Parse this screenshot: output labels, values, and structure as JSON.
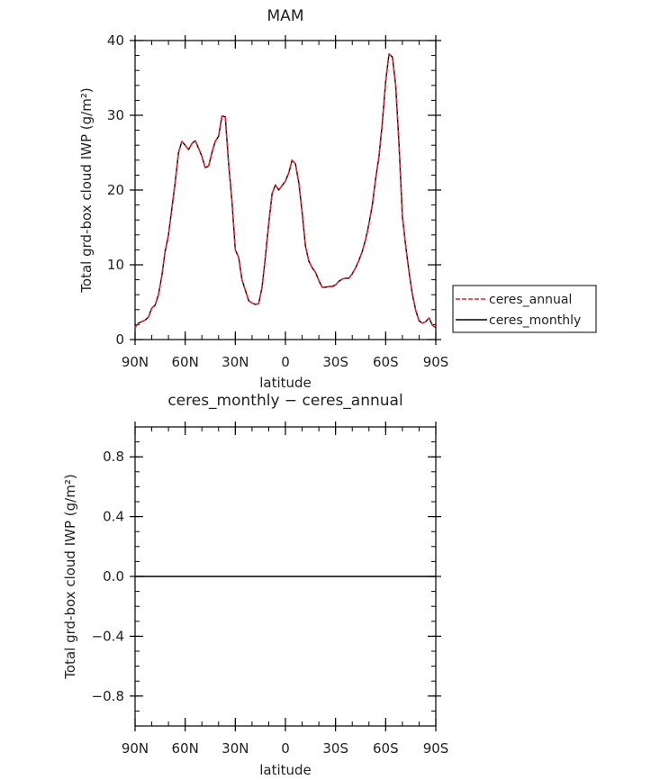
{
  "chart_data": [
    {
      "type": "line",
      "title": "MAM",
      "xlabel": "latitude",
      "ylabel": "Total grd-box cloud IWP (g/m²)",
      "xlim": [
        90,
        -90
      ],
      "ylim": [
        0,
        40
      ],
      "xticks": [
        {
          "value": 90,
          "label": "90N"
        },
        {
          "value": 60,
          "label": "60N"
        },
        {
          "value": 30,
          "label": "30N"
        },
        {
          "value": 0,
          "label": "0"
        },
        {
          "value": -30,
          "label": "30S"
        },
        {
          "value": -60,
          "label": "60S"
        },
        {
          "value": -90,
          "label": "90S"
        }
      ],
      "yticks": [
        {
          "value": 0,
          "label": "0"
        },
        {
          "value": 10,
          "label": "10"
        },
        {
          "value": 20,
          "label": "20"
        },
        {
          "value": 30,
          "label": "30"
        },
        {
          "value": 40,
          "label": "40"
        }
      ],
      "legend": {
        "placement": "right",
        "entries": [
          {
            "label": "ceres_annual",
            "color": "#e8242a",
            "dash": "dashed"
          },
          {
            "label": "ceres_monthly",
            "color": "#000000",
            "dash": "solid"
          }
        ]
      },
      "x": [
        90,
        88,
        86,
        84,
        82,
        80,
        78,
        76,
        74,
        72,
        70,
        68,
        66,
        64,
        62,
        60,
        58,
        56,
        54,
        52,
        50,
        48,
        46,
        44,
        42,
        40,
        38,
        36,
        34,
        32,
        30,
        28,
        26,
        24,
        22,
        20,
        18,
        16,
        14,
        12,
        10,
        8,
        6,
        4,
        2,
        0,
        -2,
        -4,
        -6,
        -8,
        -10,
        -12,
        -14,
        -16,
        -18,
        -20,
        -22,
        -24,
        -26,
        -28,
        -30,
        -32,
        -34,
        -36,
        -38,
        -40,
        -42,
        -44,
        -46,
        -48,
        -50,
        -52,
        -54,
        -56,
        -58,
        -60,
        -62,
        -64,
        -66,
        -68,
        -70,
        -72,
        -74,
        -76,
        -78,
        -80,
        -82,
        -84,
        -86,
        -88,
        -90
      ],
      "series": [
        {
          "name": "ceres_annual",
          "color": "#e8242a",
          "dash": "dashed",
          "values": [
            1.6,
            2.2,
            2.4,
            2.6,
            3.0,
            4.2,
            4.6,
            6.0,
            8.5,
            11.8,
            14.0,
            17.5,
            21.0,
            25.0,
            26.5,
            26.0,
            25.4,
            26.2,
            26.6,
            25.6,
            24.5,
            23.0,
            23.2,
            25.0,
            26.5,
            27.2,
            29.9,
            29.8,
            23.5,
            18.5,
            12.0,
            11.0,
            8.0,
            6.6,
            5.2,
            4.9,
            4.7,
            4.8,
            7.0,
            11.0,
            15.5,
            19.5,
            20.7,
            20.0,
            20.6,
            21.2,
            22.3,
            24.0,
            23.5,
            21.0,
            17.0,
            12.5,
            10.5,
            9.6,
            9.0,
            7.9,
            7.0,
            7.0,
            7.1,
            7.1,
            7.3,
            7.8,
            8.1,
            8.2,
            8.2,
            8.8,
            9.6,
            10.6,
            11.8,
            13.4,
            15.5,
            18.0,
            21.5,
            24.5,
            29.0,
            34.5,
            38.2,
            37.8,
            34.0,
            26.0,
            16.5,
            12.5,
            9.0,
            6.0,
            3.9,
            2.5,
            2.2,
            2.4,
            2.9,
            1.9,
            1.6
          ]
        },
        {
          "name": "ceres_monthly",
          "color": "#000000",
          "dash": "solid",
          "values": [
            1.6,
            2.2,
            2.4,
            2.6,
            3.0,
            4.2,
            4.6,
            6.0,
            8.5,
            11.8,
            14.0,
            17.5,
            21.0,
            25.0,
            26.5,
            26.0,
            25.4,
            26.2,
            26.6,
            25.6,
            24.5,
            23.0,
            23.2,
            25.0,
            26.5,
            27.2,
            29.9,
            29.8,
            23.5,
            18.5,
            12.0,
            11.0,
            8.0,
            6.6,
            5.2,
            4.9,
            4.7,
            4.8,
            7.0,
            11.0,
            15.5,
            19.5,
            20.7,
            20.0,
            20.6,
            21.2,
            22.3,
            24.0,
            23.5,
            21.0,
            17.0,
            12.5,
            10.5,
            9.6,
            9.0,
            7.9,
            7.0,
            7.0,
            7.1,
            7.1,
            7.3,
            7.8,
            8.1,
            8.2,
            8.2,
            8.8,
            9.6,
            10.6,
            11.8,
            13.4,
            15.5,
            18.0,
            21.5,
            24.5,
            29.0,
            34.5,
            38.2,
            37.8,
            34.0,
            26.0,
            16.5,
            12.5,
            9.0,
            6.0,
            3.9,
            2.5,
            2.2,
            2.4,
            2.9,
            1.9,
            1.6
          ]
        }
      ]
    },
    {
      "type": "line",
      "title": "ceres_monthly − ceres_annual",
      "xlabel": "latitude",
      "ylabel": "Total grd-box cloud IWP (g/m²)",
      "xlim": [
        90,
        -90
      ],
      "ylim": [
        -1,
        1
      ],
      "xticks": [
        {
          "value": 90,
          "label": "90N"
        },
        {
          "value": 60,
          "label": "60N"
        },
        {
          "value": 30,
          "label": "30N"
        },
        {
          "value": 0,
          "label": "0"
        },
        {
          "value": -30,
          "label": "30S"
        },
        {
          "value": -60,
          "label": "60S"
        },
        {
          "value": -90,
          "label": "90S"
        }
      ],
      "yticks": [
        {
          "value": -0.8,
          "label": "−0.8"
        },
        {
          "value": -0.4,
          "label": "−0.4"
        },
        {
          "value": 0.0,
          "label": "0.0"
        },
        {
          "value": 0.4,
          "label": "0.4"
        },
        {
          "value": 0.8,
          "label": "0.8"
        }
      ],
      "x": [
        90,
        -90
      ],
      "series": [
        {
          "color": "#000000",
          "dash": "solid",
          "values": [
            0,
            0
          ]
        }
      ]
    }
  ]
}
